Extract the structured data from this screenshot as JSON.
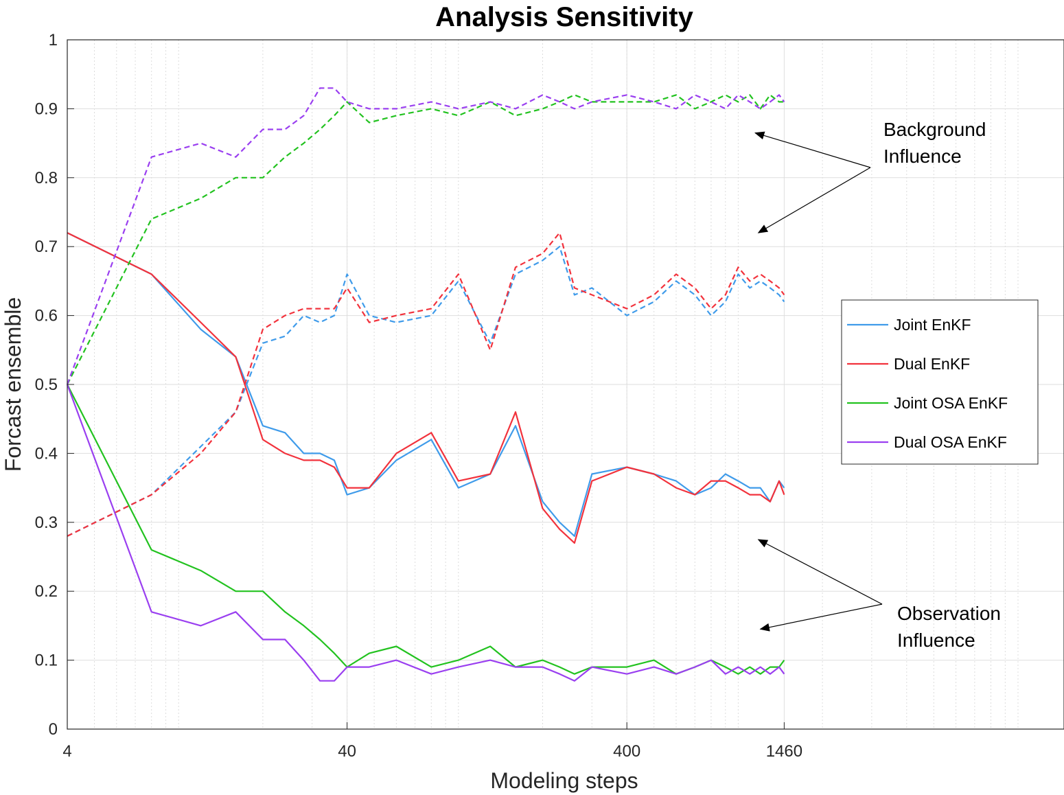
{
  "chart_data": {
    "type": "line",
    "title": "Analysis Sensitivity",
    "xlabel": "Modeling steps",
    "ylabel": "Forcast ensemble",
    "xscale": "log",
    "xlim": [
      4,
      14600
    ],
    "ylim": [
      0,
      1
    ],
    "x_ticks": [
      4,
      40,
      400,
      1460
    ],
    "y_ticks": [
      0,
      0.1,
      0.2,
      0.3,
      0.4,
      0.5,
      0.6,
      0.7,
      0.8,
      0.9,
      1
    ],
    "grid": true,
    "legend_position": "right",
    "legend": [
      "Joint EnKF",
      "Dual EnKF",
      "Joint OSA EnKF",
      "Dual OSA EnKF"
    ],
    "series": [
      {
        "name": "Joint EnKF",
        "line": "solid",
        "color": "#3f9bea",
        "x": [
          4,
          8,
          12,
          16,
          20,
          24,
          28,
          32,
          36,
          40,
          48,
          60,
          80,
          100,
          130,
          160,
          200,
          230,
          260,
          300,
          400,
          500,
          600,
          700,
          800,
          900,
          1000,
          1100,
          1200,
          1300,
          1400,
          1460
        ],
        "y": [
          0.72,
          0.66,
          0.58,
          0.54,
          0.44,
          0.43,
          0.4,
          0.4,
          0.39,
          0.34,
          0.35,
          0.39,
          0.42,
          0.35,
          0.37,
          0.44,
          0.33,
          0.3,
          0.28,
          0.37,
          0.38,
          0.37,
          0.36,
          0.34,
          0.35,
          0.37,
          0.36,
          0.35,
          0.35,
          0.33,
          0.36,
          0.35
        ]
      },
      {
        "name": "Dual EnKF",
        "line": "solid",
        "color": "#f2323c",
        "x": [
          4,
          8,
          12,
          16,
          20,
          24,
          28,
          32,
          36,
          40,
          48,
          60,
          80,
          100,
          130,
          160,
          200,
          230,
          260,
          300,
          400,
          500,
          600,
          700,
          800,
          900,
          1000,
          1100,
          1200,
          1300,
          1400,
          1460
        ],
        "y": [
          0.72,
          0.66,
          0.59,
          0.54,
          0.42,
          0.4,
          0.39,
          0.39,
          0.38,
          0.35,
          0.35,
          0.4,
          0.43,
          0.36,
          0.37,
          0.46,
          0.32,
          0.29,
          0.27,
          0.36,
          0.38,
          0.37,
          0.35,
          0.34,
          0.36,
          0.36,
          0.35,
          0.34,
          0.34,
          0.33,
          0.36,
          0.34
        ]
      },
      {
        "name": "Joint OSA EnKF",
        "line": "solid",
        "color": "#22c21f",
        "x": [
          4,
          8,
          12,
          16,
          20,
          24,
          28,
          32,
          36,
          40,
          48,
          60,
          80,
          100,
          130,
          160,
          200,
          230,
          260,
          300,
          400,
          500,
          600,
          700,
          800,
          900,
          1000,
          1100,
          1200,
          1300,
          1400,
          1460
        ],
        "y": [
          0.5,
          0.26,
          0.23,
          0.2,
          0.2,
          0.17,
          0.15,
          0.13,
          0.11,
          0.09,
          0.11,
          0.12,
          0.09,
          0.1,
          0.12,
          0.09,
          0.1,
          0.09,
          0.08,
          0.09,
          0.09,
          0.1,
          0.08,
          0.09,
          0.1,
          0.09,
          0.08,
          0.09,
          0.08,
          0.09,
          0.09,
          0.1
        ]
      },
      {
        "name": "Dual OSA EnKF",
        "line": "solid",
        "color": "#9a3ff0",
        "x": [
          4,
          8,
          12,
          16,
          20,
          24,
          28,
          32,
          36,
          40,
          48,
          60,
          80,
          100,
          130,
          160,
          200,
          230,
          260,
          300,
          400,
          500,
          600,
          700,
          800,
          900,
          1000,
          1100,
          1200,
          1300,
          1400,
          1460
        ],
        "y": [
          0.5,
          0.17,
          0.15,
          0.17,
          0.13,
          0.13,
          0.1,
          0.07,
          0.07,
          0.09,
          0.09,
          0.1,
          0.08,
          0.09,
          0.1,
          0.09,
          0.09,
          0.08,
          0.07,
          0.09,
          0.08,
          0.09,
          0.08,
          0.09,
          0.1,
          0.08,
          0.09,
          0.08,
          0.09,
          0.08,
          0.09,
          0.08
        ]
      },
      {
        "line": "dashed",
        "color": "#3f9bea",
        "x": [
          4,
          8,
          12,
          16,
          20,
          24,
          28,
          32,
          36,
          40,
          48,
          60,
          80,
          100,
          130,
          160,
          200,
          230,
          260,
          300,
          400,
          500,
          600,
          700,
          800,
          900,
          1000,
          1100,
          1200,
          1300,
          1400,
          1460
        ],
        "y": [
          0.28,
          0.34,
          0.41,
          0.46,
          0.56,
          0.57,
          0.6,
          0.59,
          0.6,
          0.66,
          0.6,
          0.59,
          0.6,
          0.65,
          0.56,
          0.66,
          0.68,
          0.7,
          0.63,
          0.64,
          0.6,
          0.62,
          0.65,
          0.63,
          0.6,
          0.62,
          0.66,
          0.64,
          0.65,
          0.64,
          0.63,
          0.62
        ]
      },
      {
        "line": "dashed",
        "color": "#f2323c",
        "x": [
          4,
          8,
          12,
          16,
          20,
          24,
          28,
          32,
          36,
          40,
          48,
          60,
          80,
          100,
          130,
          160,
          200,
          230,
          260,
          300,
          400,
          500,
          600,
          700,
          800,
          900,
          1000,
          1100,
          1200,
          1300,
          1400,
          1460
        ],
        "y": [
          0.28,
          0.34,
          0.4,
          0.46,
          0.58,
          0.6,
          0.61,
          0.61,
          0.61,
          0.64,
          0.59,
          0.6,
          0.61,
          0.66,
          0.55,
          0.67,
          0.69,
          0.72,
          0.64,
          0.63,
          0.61,
          0.63,
          0.66,
          0.64,
          0.61,
          0.63,
          0.67,
          0.65,
          0.66,
          0.65,
          0.64,
          0.63
        ]
      },
      {
        "line": "dashed",
        "color": "#22c21f",
        "x": [
          4,
          8,
          12,
          16,
          20,
          24,
          28,
          32,
          36,
          40,
          48,
          60,
          80,
          100,
          130,
          160,
          200,
          230,
          260,
          300,
          400,
          500,
          600,
          700,
          800,
          900,
          1000,
          1100,
          1200,
          1300,
          1400,
          1460
        ],
        "y": [
          0.5,
          0.74,
          0.77,
          0.8,
          0.8,
          0.83,
          0.85,
          0.87,
          0.89,
          0.91,
          0.88,
          0.89,
          0.9,
          0.89,
          0.91,
          0.89,
          0.9,
          0.91,
          0.92,
          0.91,
          0.91,
          0.91,
          0.92,
          0.9,
          0.91,
          0.92,
          0.91,
          0.92,
          0.9,
          0.92,
          0.91,
          0.91
        ]
      },
      {
        "line": "dashed",
        "color": "#9a3ff0",
        "x": [
          4,
          8,
          12,
          16,
          20,
          24,
          28,
          32,
          36,
          40,
          48,
          60,
          80,
          100,
          130,
          160,
          200,
          230,
          260,
          300,
          400,
          500,
          600,
          700,
          800,
          900,
          1000,
          1100,
          1200,
          1300,
          1400,
          1460
        ],
        "y": [
          0.5,
          0.83,
          0.85,
          0.83,
          0.87,
          0.87,
          0.89,
          0.93,
          0.93,
          0.91,
          0.9,
          0.9,
          0.91,
          0.9,
          0.91,
          0.9,
          0.92,
          0.91,
          0.9,
          0.91,
          0.92,
          0.91,
          0.9,
          0.92,
          0.91,
          0.9,
          0.92,
          0.91,
          0.9,
          0.91,
          0.92,
          0.91
        ]
      }
    ],
    "annotations": [
      {
        "text": "Background Influence",
        "lines": [
          "Background",
          "Influence"
        ],
        "targets": [
          {
            "x": 1150,
            "y": 0.865
          },
          {
            "x": 1180,
            "y": 0.72
          }
        ]
      },
      {
        "text": "Observation Influence",
        "lines": [
          "Observation",
          "Influence"
        ],
        "targets": [
          {
            "x": 1180,
            "y": 0.275
          },
          {
            "x": 1200,
            "y": 0.145
          }
        ]
      }
    ]
  }
}
